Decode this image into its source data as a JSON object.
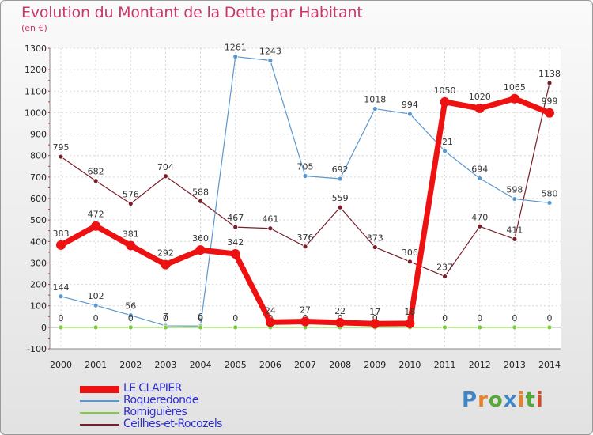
{
  "title": "Evolution du Montant de la Dette par Habitant",
  "subtitle": "(en €)",
  "logo": {
    "text": "Proxiti",
    "letter_colors": [
      "#3f86c9",
      "#e8812b",
      "#57a83a",
      "#3f86c9",
      "#e8812b",
      "#57a83a",
      "#d14b2d"
    ]
  },
  "chart_data": {
    "type": "line",
    "title": "Evolution du Montant de la Dette par Habitant",
    "ylabel": "(en €)",
    "ylim": [
      -100,
      1300
    ],
    "yticks": [
      -100,
      0,
      100,
      200,
      300,
      400,
      500,
      600,
      700,
      800,
      900,
      1000,
      1100,
      1200,
      1300
    ],
    "x": [
      "2000",
      "2001",
      "2002",
      "2003",
      "2004",
      "2005",
      "2006",
      "2007",
      "2008",
      "2009",
      "2010",
      "2011",
      "2012",
      "2013",
      "2014"
    ],
    "grid": true,
    "legend_position": "bottom-left",
    "series": [
      {
        "name": "Ceilhes-et-Rocozels",
        "color": "#7a1f2a",
        "values": [
          795,
          682,
          576,
          704,
          588,
          467,
          461,
          376,
          559,
          373,
          306,
          237,
          470,
          411,
          1138
        ]
      },
      {
        "name": "Roqueredonde",
        "color": "#5b98cf",
        "values": [
          144,
          102,
          56,
          7,
          6,
          1261,
          1243,
          705,
          692,
          1018,
          994,
          821,
          694,
          598,
          580
        ],
        "label_overrides": {
          "3": "7",
          "4": "6"
        }
      },
      {
        "name": "Romiguières",
        "color": "#7fcc3d",
        "values": [
          0,
          0,
          0,
          0,
          0,
          0,
          0,
          0,
          0,
          0,
          0,
          0,
          0,
          0,
          0
        ]
      },
      {
        "name": "LE CLAPIER",
        "color": "#ee1111",
        "values": [
          383,
          472,
          381,
          292,
          360,
          342,
          24,
          27,
          22,
          17,
          18,
          1050,
          1020,
          1065,
          999
        ]
      }
    ]
  },
  "legend": [
    {
      "label": "LE CLAPIER",
      "color": "#ee1111"
    },
    {
      "label": "Roqueredonde",
      "color": "#5b98cf"
    },
    {
      "label": "Romiguières",
      "color": "#7fcc3d"
    },
    {
      "label": "Ceilhes-et-Rocozels",
      "color": "#7a1f2a"
    }
  ]
}
